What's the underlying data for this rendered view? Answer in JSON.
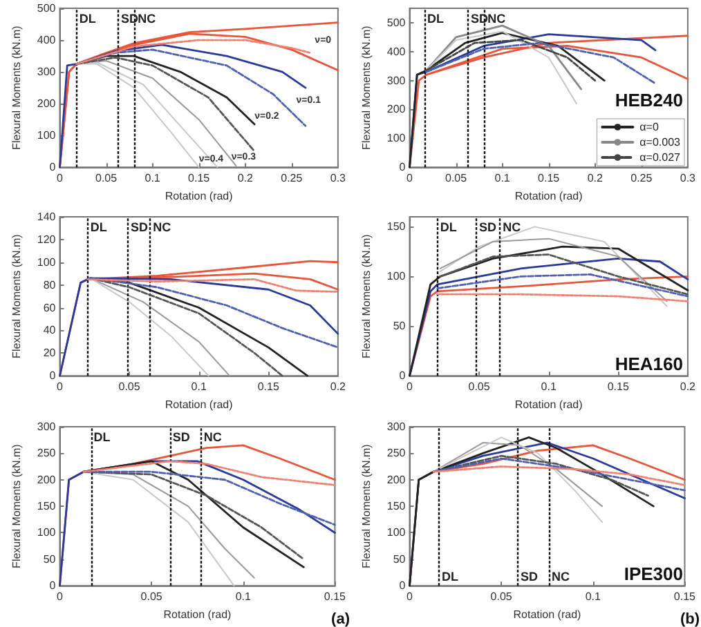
{
  "chart_data": [
    {
      "type": "line",
      "xlabel": "Rotation (rad)",
      "ylabel": "Flexural Moments (kN.m)",
      "xlim": [
        0,
        0.3
      ],
      "ylim": [
        0,
        500
      ],
      "xticks": [
        0,
        0.05,
        0.1,
        0.15,
        0.2,
        0.25,
        0.3
      ],
      "yticks": [
        0,
        100,
        200,
        300,
        400,
        500
      ],
      "marker": "none",
      "ref_lines": [
        {
          "axis": "x",
          "value": 0.018,
          "label": "DL",
          "line_style": "dotted"
        },
        {
          "axis": "x",
          "value": 0.063,
          "label": "SD",
          "line_style": "dotted"
        },
        {
          "axis": "x",
          "value": 0.081,
          "label": "NC",
          "line_style": "dotted"
        }
      ],
      "annotations": [
        {
          "text": "ν=0",
          "x": 0.275,
          "y": 375
        },
        {
          "text": "ν=0.1",
          "x": 0.255,
          "y": 185
        },
        {
          "text": "ν=0.2",
          "x": 0.21,
          "y": 135
        },
        {
          "text": "ν=0.3",
          "x": 0.185,
          "y": 8
        },
        {
          "text": "ν=0.4",
          "x": 0.15,
          "y": 0
        }
      ],
      "series": [
        {
          "color": "#e8553a",
          "line_style": "solid",
          "x": [
            0,
            0.01,
            0.018,
            0.05,
            0.08,
            0.14,
            0.2,
            0.3
          ],
          "values": [
            0,
            300,
            325,
            360,
            390,
            425,
            435,
            455
          ]
        },
        {
          "color": "#e8553a",
          "line_style": "solid",
          "x": [
            0,
            0.01,
            0.018,
            0.08,
            0.14,
            0.2,
            0.25,
            0.3
          ],
          "values": [
            0,
            300,
            325,
            385,
            420,
            410,
            370,
            305
          ]
        },
        {
          "color": "#f08070",
          "line_style": "dotted",
          "x": [
            0.018,
            0.08,
            0.15,
            0.2,
            0.25,
            0.27
          ],
          "values": [
            325,
            380,
            400,
            400,
            375,
            360
          ]
        },
        {
          "color": "#2a3a9a",
          "line_style": "solid",
          "x": [
            0,
            0.008,
            0.018,
            0.06,
            0.11,
            0.18,
            0.24,
            0.265
          ],
          "values": [
            0,
            320,
            325,
            365,
            385,
            350,
            300,
            250
          ]
        },
        {
          "color": "#5060b0",
          "line_style": "dashed",
          "x": [
            0.018,
            0.06,
            0.1,
            0.18,
            0.23,
            0.265
          ],
          "values": [
            325,
            360,
            370,
            320,
            230,
            130
          ]
        },
        {
          "color": "#222222",
          "line_style": "solid",
          "x": [
            0.018,
            0.05,
            0.08,
            0.13,
            0.18,
            0.21
          ],
          "values": [
            325,
            350,
            350,
            300,
            220,
            135
          ]
        },
        {
          "color": "#555555",
          "line_style": "dashed",
          "x": [
            0.018,
            0.06,
            0.1,
            0.16,
            0.21
          ],
          "values": [
            325,
            345,
            320,
            220,
            50
          ]
        },
        {
          "color": "#999999",
          "line_style": "solid",
          "x": [
            0.018,
            0.05,
            0.1,
            0.15,
            0.19
          ],
          "values": [
            325,
            335,
            280,
            150,
            5
          ]
        },
        {
          "color": "#c8c8c8",
          "line_style": "solid",
          "x": [
            0.018,
            0.04,
            0.09,
            0.13,
            0.17
          ],
          "values": [
            325,
            330,
            260,
            130,
            0
          ]
        },
        {
          "color": "#c8c8c8",
          "line_style": "solid",
          "x": [
            0.018,
            0.04,
            0.08,
            0.12,
            0.15
          ],
          "values": [
            325,
            325,
            250,
            110,
            0
          ]
        }
      ]
    },
    {
      "type": "line",
      "xlabel": "Rotation (rad)",
      "ylabel": "Flexural Moments (kN.m)",
      "xlim": [
        0,
        0.3
      ],
      "ylim": [
        0,
        550
      ],
      "xticks": [
        0,
        0.05,
        0.1,
        0.15,
        0.2,
        0.25,
        0.3
      ],
      "yticks": [
        0,
        100,
        200,
        300,
        400,
        500
      ],
      "marker": "none",
      "legend": "bottom right",
      "ref_lines": [
        {
          "axis": "x",
          "value": 0.016,
          "label": "DL",
          "line_style": "dotted"
        },
        {
          "axis": "x",
          "value": 0.063,
          "label": "SD",
          "line_style": "dotted"
        },
        {
          "axis": "x",
          "value": 0.081,
          "label": "NC",
          "line_style": "dotted"
        }
      ],
      "annotations": [
        "HEB240"
      ],
      "series": [
        {
          "color": "#e8553a",
          "line_style": "solid",
          "x": [
            0,
            0.01,
            0.018,
            0.08,
            0.15,
            0.3
          ],
          "values": [
            0,
            300,
            320,
            380,
            430,
            455
          ]
        },
        {
          "color": "#e8553a",
          "line_style": "solid",
          "x": [
            0.018,
            0.1,
            0.17,
            0.25,
            0.3
          ],
          "values": [
            320,
            410,
            420,
            380,
            305
          ]
        },
        {
          "color": "#2a3a9a",
          "line_style": "solid",
          "x": [
            0,
            0.008,
            0.018,
            0.08,
            0.15,
            0.25,
            0.265
          ],
          "values": [
            0,
            320,
            330,
            420,
            460,
            440,
            405
          ]
        },
        {
          "color": "#5060b0",
          "line_style": "dashed",
          "x": [
            0.018,
            0.08,
            0.14,
            0.22,
            0.265
          ],
          "values": [
            330,
            410,
            430,
            380,
            290
          ]
        },
        {
          "name": "α=0",
          "color": "#222222",
          "line_style": "solid",
          "x": [
            0,
            0.008,
            0.018,
            0.06,
            0.1,
            0.16,
            0.21
          ],
          "values": [
            0,
            320,
            335,
            430,
            465,
            420,
            300
          ]
        },
        {
          "name": "α=0.003",
          "color": "#888888",
          "line_style": "solid",
          "x": [
            0.018,
            0.05,
            0.1,
            0.15,
            0.185
          ],
          "values": [
            335,
            450,
            490,
            420,
            270
          ]
        },
        {
          "name": "α=0.027",
          "color": "#444444",
          "line_style": "dashed",
          "x": [
            0.018,
            0.07,
            0.12,
            0.17,
            0.2
          ],
          "values": [
            335,
            430,
            440,
            380,
            300
          ]
        },
        {
          "color": "#c8c8c8",
          "line_style": "solid",
          "x": [
            0.018,
            0.05,
            0.1,
            0.15,
            0.18
          ],
          "values": [
            335,
            440,
            470,
            380,
            220
          ]
        }
      ]
    },
    {
      "type": "line",
      "xlabel": "Rotation (rad)",
      "ylabel": "Flexural Moments (kN.m)",
      "xlim": [
        0,
        0.2
      ],
      "ylim": [
        0,
        140
      ],
      "xticks": [
        0,
        0.05,
        0.1,
        0.15,
        0.2
      ],
      "yticks": [
        0,
        20,
        40,
        60,
        80,
        100,
        120,
        140
      ],
      "marker": "none",
      "ref_lines": [
        {
          "axis": "x",
          "value": 0.02,
          "label": "DL",
          "line_style": "dotted"
        },
        {
          "axis": "x",
          "value": 0.049,
          "label": "SD",
          "line_style": "dotted"
        },
        {
          "axis": "x",
          "value": 0.065,
          "label": "NC",
          "line_style": "dotted"
        }
      ],
      "series": [
        {
          "color": "#e8553a",
          "line_style": "solid",
          "x": [
            0,
            0.015,
            0.02,
            0.07,
            0.13,
            0.18,
            0.2
          ],
          "values": [
            0,
            82,
            85,
            88,
            95,
            101,
            100
          ]
        },
        {
          "color": "#e8553a",
          "line_style": "solid",
          "x": [
            0.02,
            0.08,
            0.14,
            0.18,
            0.2
          ],
          "values": [
            85,
            87,
            90,
            85,
            76
          ]
        },
        {
          "color": "#f08070",
          "line_style": "dotted",
          "x": [
            0.02,
            0.07,
            0.14,
            0.17,
            0.2
          ],
          "values": [
            85,
            83,
            85,
            75,
            74
          ]
        },
        {
          "color": "#2a3a9a",
          "line_style": "solid",
          "x": [
            0,
            0.015,
            0.022,
            0.08,
            0.15,
            0.18,
            0.2
          ],
          "values": [
            0,
            82,
            86,
            85,
            76,
            62,
            37
          ]
        },
        {
          "color": "#5060b0",
          "line_style": "dashed",
          "x": [
            0.022,
            0.07,
            0.12,
            0.16,
            0.2
          ],
          "values": [
            86,
            78,
            62,
            42,
            25
          ]
        },
        {
          "color": "#222222",
          "line_style": "solid",
          "x": [
            0.022,
            0.05,
            0.1,
            0.15,
            0.178
          ],
          "values": [
            86,
            82,
            60,
            25,
            0
          ]
        },
        {
          "color": "#555555",
          "line_style": "dashed",
          "x": [
            0.022,
            0.05,
            0.1,
            0.14,
            0.16
          ],
          "values": [
            86,
            78,
            55,
            20,
            0
          ]
        },
        {
          "color": "#999999",
          "line_style": "solid",
          "x": [
            0.022,
            0.06,
            0.1,
            0.122
          ],
          "values": [
            86,
            65,
            30,
            0
          ]
        },
        {
          "color": "#c8c8c8",
          "line_style": "solid",
          "x": [
            0.022,
            0.05,
            0.08,
            0.107
          ],
          "values": [
            86,
            65,
            35,
            0
          ]
        }
      ]
    },
    {
      "type": "line",
      "xlabel": "Rotation (rad)",
      "ylabel": "Flexural Moments (kN.m)",
      "xlim": [
        0,
        0.2
      ],
      "ylim": [
        0,
        160
      ],
      "xticks": [
        0,
        0.05,
        0.1,
        0.15,
        0.2
      ],
      "yticks": [
        0,
        50,
        100,
        150
      ],
      "marker": "none",
      "ref_lines": [
        {
          "axis": "x",
          "value": 0.02,
          "label": "DL",
          "line_style": "dotted"
        },
        {
          "axis": "x",
          "value": 0.048,
          "label": "SD",
          "line_style": "dotted"
        },
        {
          "axis": "x",
          "value": 0.065,
          "label": "NC",
          "line_style": "dotted"
        }
      ],
      "annotations": [
        "HEA160"
      ],
      "series": [
        {
          "color": "#e8553a",
          "line_style": "solid",
          "x": [
            0,
            0.015,
            0.02,
            0.08,
            0.15,
            0.2
          ],
          "values": [
            0,
            80,
            85,
            90,
            97,
            100
          ]
        },
        {
          "color": "#f08070",
          "line_style": "dotted",
          "x": [
            0.02,
            0.08,
            0.15,
            0.2
          ],
          "values": [
            82,
            82,
            80,
            75
          ]
        },
        {
          "color": "#2a3a9a",
          "line_style": "solid",
          "x": [
            0,
            0.015,
            0.02,
            0.08,
            0.15,
            0.18,
            0.2
          ],
          "values": [
            0,
            85,
            92,
            108,
            118,
            115,
            97
          ]
        },
        {
          "color": "#5060b0",
          "line_style": "dashed",
          "x": [
            0.02,
            0.08,
            0.13,
            0.2
          ],
          "values": [
            88,
            100,
            102,
            80
          ]
        },
        {
          "color": "#222222",
          "line_style": "solid",
          "x": [
            0,
            0.015,
            0.022,
            0.06,
            0.11,
            0.15,
            0.2
          ],
          "values": [
            0,
            92,
            100,
            118,
            130,
            128,
            86
          ]
        },
        {
          "color": "#c8c8c8",
          "line_style": "solid",
          "x": [
            0.022,
            0.05,
            0.09,
            0.14,
            0.185
          ],
          "values": [
            105,
            130,
            150,
            135,
            70
          ]
        },
        {
          "color": "#555555",
          "line_style": "dashed",
          "x": [
            0.022,
            0.06,
            0.1,
            0.15,
            0.2
          ],
          "values": [
            100,
            120,
            122,
            100,
            82
          ]
        },
        {
          "color": "#999999",
          "line_style": "solid",
          "x": [
            0.022,
            0.06,
            0.1,
            0.15,
            0.185
          ],
          "values": [
            108,
            135,
            138,
            120,
            75
          ]
        }
      ]
    },
    {
      "type": "line",
      "xlabel": "Rotation (rad)",
      "ylabel": "Flexural Moments (kN.m)",
      "xlim": [
        0,
        0.15
      ],
      "ylim": [
        0,
        300
      ],
      "xticks": [
        0,
        0.05,
        0.1,
        0.15
      ],
      "yticks": [
        0,
        50,
        100,
        150,
        200,
        250,
        300
      ],
      "marker": "none",
      "ref_lines": [
        {
          "axis": "x",
          "value": 0.017,
          "label": "DL",
          "line_style": "dotted"
        },
        {
          "axis": "x",
          "value": 0.06,
          "label": "SD",
          "line_style": "dotted"
        },
        {
          "axis": "x",
          "value": 0.077,
          "label": "NC",
          "line_style": "dotted"
        }
      ],
      "annotations": [
        "(a)"
      ],
      "series": [
        {
          "color": "#e8553a",
          "line_style": "solid",
          "x": [
            0,
            0.005,
            0.013,
            0.04,
            0.08,
            0.1,
            0.12,
            0.15
          ],
          "values": [
            0,
            200,
            215,
            230,
            260,
            265,
            240,
            200
          ]
        },
        {
          "color": "#f08070",
          "line_style": "dotted",
          "x": [
            0.013,
            0.06,
            0.08,
            0.11,
            0.15
          ],
          "values": [
            215,
            235,
            230,
            205,
            190
          ]
        },
        {
          "color": "#2a3a9a",
          "line_style": "solid",
          "x": [
            0,
            0.005,
            0.013,
            0.05,
            0.075,
            0.1,
            0.13,
            0.15
          ],
          "values": [
            0,
            200,
            215,
            235,
            235,
            200,
            145,
            100
          ]
        },
        {
          "color": "#5060b0",
          "line_style": "dashed",
          "x": [
            0.013,
            0.05,
            0.09,
            0.12,
            0.15
          ],
          "values": [
            215,
            215,
            200,
            155,
            115
          ]
        },
        {
          "color": "#222222",
          "line_style": "solid",
          "x": [
            0.013,
            0.05,
            0.07,
            0.1,
            0.133
          ],
          "values": [
            215,
            235,
            200,
            110,
            35
          ]
        },
        {
          "color": "#555555",
          "line_style": "dashed",
          "x": [
            0.013,
            0.05,
            0.08,
            0.11,
            0.133
          ],
          "values": [
            215,
            210,
            170,
            110,
            50
          ]
        },
        {
          "color": "#999999",
          "line_style": "solid",
          "x": [
            0.013,
            0.04,
            0.07,
            0.09,
            0.106
          ],
          "values": [
            215,
            210,
            150,
            70,
            15
          ]
        },
        {
          "color": "#c8c8c8",
          "line_style": "solid",
          "x": [
            0.013,
            0.04,
            0.07,
            0.095
          ],
          "values": [
            215,
            200,
            120,
            0
          ]
        }
      ]
    },
    {
      "type": "line",
      "xlabel": "Rotation (rad)",
      "ylabel": "Flexural Moments (kN.m)",
      "xlim": [
        0,
        0.15
      ],
      "ylim": [
        0,
        300
      ],
      "xticks": [
        0,
        0.05,
        0.1,
        0.15
      ],
      "yticks": [
        0,
        50,
        100,
        150,
        200,
        250,
        300
      ],
      "marker": "none",
      "ref_lines": [
        {
          "axis": "x",
          "value": 0.016,
          "label": "DL",
          "line_style": "dotted"
        },
        {
          "axis": "x",
          "value": 0.059,
          "label": "SD",
          "line_style": "dotted"
        },
        {
          "axis": "x",
          "value": 0.076,
          "label": "NC",
          "line_style": "dotted"
        }
      ],
      "annotations": [
        "IPE300",
        "(b)"
      ],
      "series": [
        {
          "color": "#e8553a",
          "line_style": "solid",
          "x": [
            0,
            0.005,
            0.013,
            0.04,
            0.07,
            0.1,
            0.12,
            0.15
          ],
          "values": [
            0,
            200,
            215,
            230,
            255,
            265,
            240,
            200
          ]
        },
        {
          "color": "#f08070",
          "line_style": "dotted",
          "x": [
            0.013,
            0.05,
            0.09,
            0.12,
            0.15
          ],
          "values": [
            215,
            225,
            220,
            210,
            190
          ]
        },
        {
          "color": "#2a3a9a",
          "line_style": "solid",
          "x": [
            0,
            0.005,
            0.013,
            0.04,
            0.075,
            0.1,
            0.15
          ],
          "values": [
            0,
            200,
            215,
            245,
            270,
            240,
            165
          ]
        },
        {
          "color": "#5060b0",
          "line_style": "dashed",
          "x": [
            0.013,
            0.05,
            0.09,
            0.15
          ],
          "values": [
            215,
            240,
            220,
            180
          ]
        },
        {
          "color": "#222222",
          "line_style": "solid",
          "x": [
            0,
            0.005,
            0.013,
            0.04,
            0.065,
            0.08,
            0.1,
            0.133
          ],
          "values": [
            0,
            200,
            215,
            250,
            280,
            260,
            220,
            150
          ]
        },
        {
          "color": "#555555",
          "line_style": "dashed",
          "x": [
            0.013,
            0.05,
            0.08,
            0.11,
            0.13
          ],
          "values": [
            215,
            245,
            230,
            200,
            170
          ]
        },
        {
          "color": "#999999",
          "line_style": "solid",
          "x": [
            0.013,
            0.04,
            0.06,
            0.08,
            0.105
          ],
          "values": [
            215,
            270,
            265,
            220,
            150
          ]
        },
        {
          "color": "#c8c8c8",
          "line_style": "solid",
          "x": [
            0.013,
            0.05,
            0.07,
            0.09,
            0.105
          ],
          "values": [
            215,
            280,
            250,
            180,
            120
          ]
        }
      ]
    }
  ]
}
